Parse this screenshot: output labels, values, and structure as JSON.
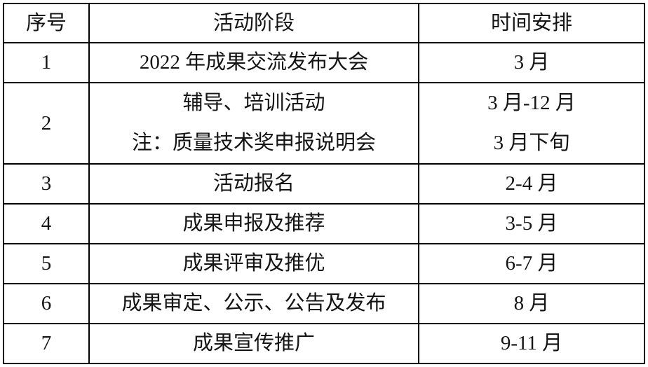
{
  "table": {
    "columns": [
      {
        "label": "序号"
      },
      {
        "label": "活动阶段"
      },
      {
        "label": "时间安排"
      }
    ],
    "rows": [
      {
        "no": "1",
        "stage": "2022 年成果交流发布大会",
        "time": "3 月"
      },
      {
        "no": "2",
        "stage_line1": "辅导、培训活动",
        "stage_line2": "注：质量技术奖申报说明会",
        "time_line1": "3 月-12 月",
        "time_line2": "3 月下旬"
      },
      {
        "no": "3",
        "stage": "活动报名",
        "time": "2-4 月"
      },
      {
        "no": "4",
        "stage": "成果申报及推荐",
        "time": "3-5 月"
      },
      {
        "no": "5",
        "stage": "成果评审及推优",
        "time": "6-7 月"
      },
      {
        "no": "6",
        "stage": "成果审定、公示、公告及发布",
        "time": "8 月"
      },
      {
        "no": "7",
        "stage": "成果宣传推广",
        "time": "9-11 月"
      }
    ]
  }
}
